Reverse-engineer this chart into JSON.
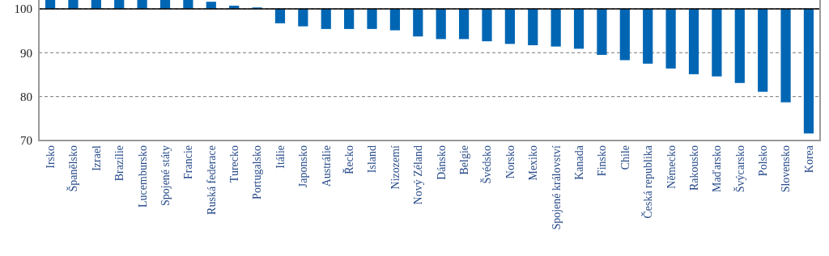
{
  "chart_data": {
    "type": "bar",
    "categories": [
      "Irsko",
      "Španělsko",
      "Izrael",
      "Brazílie",
      "Lucembursko",
      "Spojené státy",
      "Francie",
      "Ruská federace",
      "Turecko",
      "Portugalsko",
      "Itálie",
      "Japonsko",
      "Austrálie",
      "Řecko",
      "Island",
      "Nizozemí",
      "Nový Zéland",
      "Dánsko",
      "Belgie",
      "Švédsko",
      "Norsko",
      "Mexiko",
      "Spojené království",
      "Kanada",
      "Finsko",
      "Chile",
      "Česká republika",
      "Německo",
      "Rakousko",
      "Maďarsko",
      "Švýcarsko",
      "Polsko",
      "Slovensko",
      "Korea"
    ],
    "base": [
      100,
      100,
      100,
      100,
      100,
      100,
      100,
      100,
      100,
      100,
      100,
      100,
      100,
      100,
      100,
      100,
      100,
      100,
      100,
      100,
      100,
      100,
      100,
      100,
      100,
      100,
      100,
      100,
      100,
      100,
      100,
      100,
      100,
      100
    ],
    "values": [
      2,
      2,
      2,
      2,
      2,
      2,
      2,
      1.6,
      0.7,
      0.3,
      -3.3,
      -4.0,
      -4.6,
      -4.6,
      -4.6,
      -4.9,
      -6.3,
      -6.9,
      -6.9,
      -7.4,
      -8.0,
      -8.3,
      -8.6,
      -9.1,
      -10.5,
      -11.7,
      -12.5,
      -13.6,
      -14.9,
      -15.4,
      -16.9,
      -18.9,
      -21.3,
      -28.4
    ],
    "color": "#0066b3",
    "ylim": [
      70,
      102
    ],
    "yticks": [
      70,
      80,
      90,
      100
    ],
    "grid": "y",
    "line_style": "dashed",
    "ref_lines": [
      {
        "axis": "y",
        "value": 100,
        "color": "#000000",
        "line_style": "solid"
      }
    ]
  }
}
